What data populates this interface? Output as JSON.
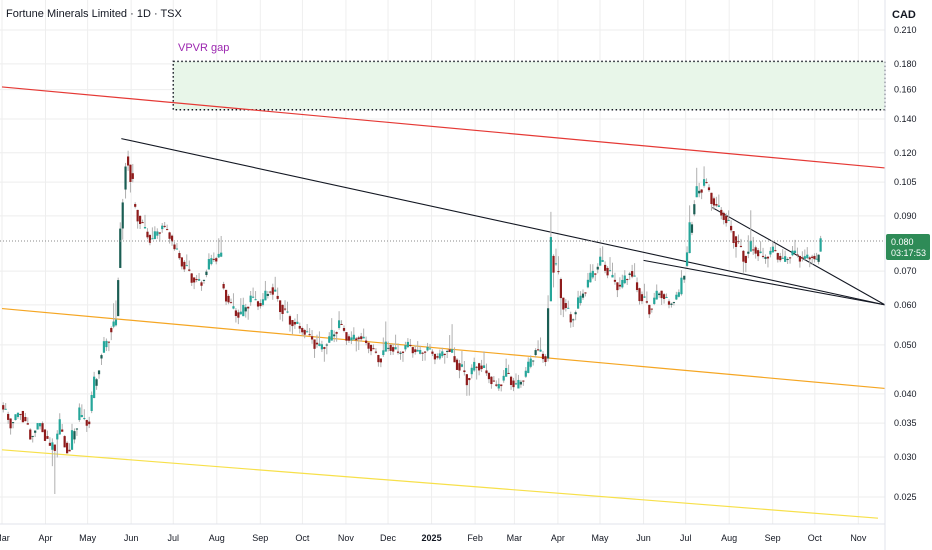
{
  "header": {
    "title": "Fortune Minerals Limited · 1D · TSX",
    "currency": "CAD"
  },
  "colors": {
    "up": "#26a69a",
    "up_dark": "#1b5e54",
    "down": "#8e1b1b",
    "wick": "#b0b0b0",
    "grid": "#eeeeee",
    "red_line": "#e53935",
    "orange_line": "#f5a623",
    "yellow_line": "#f7e04a",
    "trend_line": "#131722",
    "gap_fill": "#e8f6e9",
    "annotation": "#9c27b0",
    "price_badge": "#2e8b57"
  },
  "price_badge": {
    "price": "0.080",
    "countdown": "03:17:53"
  },
  "annotations": {
    "vpvr_gap": "VPVR gap"
  },
  "chart_data": {
    "type": "candlestick",
    "title": "Fortune Minerals Limited · 1D · TSX",
    "y_scale": "log",
    "ylim": [
      0.0225,
      0.227
    ],
    "y_ticks": [
      "0.210",
      "0.180",
      "0.160",
      "0.140",
      "0.120",
      "0.105",
      "0.090",
      "0.070",
      "0.060",
      "0.050",
      "0.040",
      "0.035",
      "0.030",
      "0.025"
    ],
    "x_ticks": [
      "Mar",
      "Apr",
      "May",
      "Jun",
      "Jul",
      "Aug",
      "Sep",
      "Oct",
      "Nov",
      "Dec",
      "2025",
      "Feb",
      "Mar",
      "Apr",
      "May",
      "Jun",
      "Jul",
      "Aug",
      "Sep",
      "Oct",
      "Nov"
    ],
    "x_range": [
      "2024-03-01",
      "2025-11-20"
    ],
    "grid": true,
    "last_price": 0.08,
    "vpvr_gap_zone": {
      "from": "2024-07-01",
      "to": "2025-11-20",
      "low": 0.146,
      "high": 0.182
    },
    "trend_lines": [
      {
        "name": "red",
        "points": [
          [
            "2024-03-01",
            0.162
          ],
          [
            "2025-11-20",
            0.112
          ]
        ]
      },
      {
        "name": "orange",
        "points": [
          [
            "2024-03-01",
            0.059
          ],
          [
            "2025-11-20",
            0.041
          ]
        ]
      },
      {
        "name": "yellow",
        "points": [
          [
            "2024-03-01",
            0.031
          ],
          [
            "2025-11-15",
            0.0227
          ]
        ]
      },
      {
        "name": "wedge-upper",
        "points": [
          [
            "2024-05-25",
            0.128
          ],
          [
            "2025-11-20",
            0.06
          ]
        ]
      },
      {
        "name": "wedge-lower",
        "points": [
          [
            "2025-06-01",
            0.0735
          ],
          [
            "2025-11-20",
            0.06
          ]
        ]
      },
      {
        "name": "wedge-flag",
        "points": [
          [
            "2025-07-20",
            0.0935
          ],
          [
            "2025-11-20",
            0.06
          ]
        ]
      }
    ],
    "series": [
      {
        "points": [
          [
            "2024-03-01",
            0.038,
            0.039,
            0.034,
            0.035
          ],
          [
            "2024-03-08",
            0.035,
            0.037,
            0.034,
            0.037
          ],
          [
            "2024-03-15",
            0.037,
            0.038,
            0.033,
            0.033
          ],
          [
            "2024-03-22",
            0.033,
            0.035,
            0.032,
            0.035
          ],
          [
            "2024-03-29",
            0.035,
            0.036,
            0.031,
            0.031
          ],
          [
            "2024-04-05",
            0.031,
            0.035,
            0.0255,
            0.034
          ],
          [
            "2024-04-12",
            0.034,
            0.035,
            0.03,
            0.03
          ],
          [
            "2024-04-19",
            0.031,
            0.038,
            0.03,
            0.037
          ],
          [
            "2024-04-26",
            0.036,
            0.038,
            0.034,
            0.035
          ],
          [
            "2024-05-03",
            0.037,
            0.047,
            0.036,
            0.046
          ],
          [
            "2024-05-10",
            0.047,
            0.053,
            0.045,
            0.052
          ],
          [
            "2024-05-17",
            0.054,
            0.061,
            0.052,
            0.055
          ],
          [
            "2024-05-22",
            0.057,
            0.09,
            0.068,
            0.085
          ],
          [
            "2024-05-25",
            0.085,
            0.128,
            0.08,
            0.118
          ],
          [
            "2024-05-29",
            0.118,
            0.125,
            0.1,
            0.105
          ],
          [
            "2024-06-03",
            0.095,
            0.096,
            0.082,
            0.085
          ],
          [
            "2024-06-10",
            0.085,
            0.09,
            0.079,
            0.08
          ],
          [
            "2024-06-17",
            0.081,
            0.088,
            0.078,
            0.086
          ],
          [
            "2024-06-24",
            0.086,
            0.088,
            0.079,
            0.081
          ],
          [
            "2024-07-01",
            0.079,
            0.081,
            0.072,
            0.073
          ],
          [
            "2024-07-08",
            0.073,
            0.077,
            0.067,
            0.068
          ],
          [
            "2024-07-15",
            0.068,
            0.07,
            0.064,
            0.066
          ],
          [
            "2024-07-22",
            0.067,
            0.076,
            0.066,
            0.074
          ],
          [
            "2024-07-29",
            0.074,
            0.082,
            0.073,
            0.075
          ],
          [
            "2024-08-05",
            0.066,
            0.067,
            0.058,
            0.059
          ],
          [
            "2024-08-12",
            0.059,
            0.063,
            0.055,
            0.057
          ],
          [
            "2024-08-19",
            0.057,
            0.064,
            0.054,
            0.062
          ],
          [
            "2024-08-26",
            0.062,
            0.065,
            0.059,
            0.06
          ],
          [
            "2024-09-02",
            0.06,
            0.068,
            0.059,
            0.065
          ],
          [
            "2024-09-09",
            0.065,
            0.069,
            0.058,
            0.06
          ],
          [
            "2024-09-16",
            0.06,
            0.063,
            0.054,
            0.056
          ],
          [
            "2024-09-23",
            0.056,
            0.058,
            0.052,
            0.054
          ],
          [
            "2024-09-30",
            0.054,
            0.056,
            0.051,
            0.052
          ],
          [
            "2024-10-07",
            0.052,
            0.055,
            0.047,
            0.049
          ],
          [
            "2024-10-14",
            0.049,
            0.052,
            0.046,
            0.051
          ],
          [
            "2024-10-21",
            0.051,
            0.058,
            0.049,
            0.055
          ],
          [
            "2024-10-28",
            0.055,
            0.056,
            0.05,
            0.051
          ],
          [
            "2024-11-04",
            0.051,
            0.054,
            0.048,
            0.052
          ],
          [
            "2024-11-11",
            0.052,
            0.054,
            0.049,
            0.05
          ],
          [
            "2024-11-18",
            0.05,
            0.051,
            0.046,
            0.047
          ],
          [
            "2024-11-25",
            0.047,
            0.055,
            0.046,
            0.05
          ],
          [
            "2024-12-02",
            0.05,
            0.053,
            0.047,
            0.048
          ],
          [
            "2024-12-09",
            0.048,
            0.051,
            0.046,
            0.05
          ],
          [
            "2024-12-16",
            0.05,
            0.052,
            0.047,
            0.048
          ],
          [
            "2024-12-23",
            0.048,
            0.05,
            0.046,
            0.049
          ],
          [
            "2024-12-30",
            0.049,
            0.05,
            0.046,
            0.047
          ],
          [
            "2025-01-06",
            0.047,
            0.05,
            0.045,
            0.049
          ],
          [
            "2025-01-13",
            0.049,
            0.055,
            0.046,
            0.046
          ],
          [
            "2025-01-20",
            0.046,
            0.049,
            0.041,
            0.043
          ],
          [
            "2025-01-27",
            0.043,
            0.047,
            0.04,
            0.046
          ],
          [
            "2025-02-03",
            0.046,
            0.049,
            0.043,
            0.044
          ],
          [
            "2025-02-10",
            0.044,
            0.045,
            0.04,
            0.041
          ],
          [
            "2025-02-17",
            0.041,
            0.046,
            0.04,
            0.044
          ],
          [
            "2025-02-24",
            0.044,
            0.046,
            0.04,
            0.041
          ],
          [
            "2025-03-03",
            0.041,
            0.045,
            0.04,
            0.044
          ],
          [
            "2025-03-10",
            0.044,
            0.05,
            0.043,
            0.049
          ],
          [
            "2025-03-17",
            0.049,
            0.052,
            0.046,
            0.047
          ],
          [
            "2025-03-24",
            0.047,
            0.085,
            0.046,
            0.075
          ],
          [
            "2025-03-28",
            0.075,
            0.081,
            0.06,
            0.065
          ],
          [
            "2025-04-04",
            0.062,
            0.064,
            0.054,
            0.056
          ],
          [
            "2025-04-11",
            0.056,
            0.064,
            0.054,
            0.062
          ],
          [
            "2025-04-18",
            0.062,
            0.071,
            0.061,
            0.068
          ],
          [
            "2025-04-25",
            0.068,
            0.076,
            0.066,
            0.073
          ],
          [
            "2025-05-02",
            0.073,
            0.078,
            0.068,
            0.069
          ],
          [
            "2025-05-09",
            0.068,
            0.072,
            0.063,
            0.065
          ],
          [
            "2025-05-16",
            0.065,
            0.072,
            0.063,
            0.07
          ],
          [
            "2025-05-23",
            0.07,
            0.074,
            0.062,
            0.063
          ],
          [
            "2025-05-30",
            0.063,
            0.067,
            0.058,
            0.059
          ],
          [
            "2025-06-06",
            0.059,
            0.066,
            0.058,
            0.064
          ],
          [
            "2025-06-13",
            0.064,
            0.065,
            0.058,
            0.06
          ],
          [
            "2025-06-20",
            0.06,
            0.064,
            0.059,
            0.063
          ],
          [
            "2025-06-27",
            0.063,
            0.08,
            0.062,
            0.076
          ],
          [
            "2025-07-03",
            0.076,
            0.106,
            0.075,
            0.098
          ],
          [
            "2025-07-08",
            0.098,
            0.114,
            0.095,
            0.105
          ],
          [
            "2025-07-15",
            0.105,
            0.107,
            0.092,
            0.095
          ],
          [
            "2025-07-22",
            0.095,
            0.1,
            0.088,
            0.09
          ],
          [
            "2025-07-29",
            0.09,
            0.094,
            0.08,
            0.082
          ],
          [
            "2025-08-05",
            0.082,
            0.085,
            0.071,
            0.075
          ],
          [
            "2025-08-12",
            0.075,
            0.09,
            0.072,
            0.078
          ],
          [
            "2025-08-19",
            0.078,
            0.082,
            0.072,
            0.074
          ],
          [
            "2025-08-26",
            0.074,
            0.079,
            0.071,
            0.077
          ],
          [
            "2025-09-02",
            0.077,
            0.08,
            0.072,
            0.073
          ],
          [
            "2025-09-09",
            0.073,
            0.078,
            0.071,
            0.076
          ],
          [
            "2025-09-16",
            0.076,
            0.08,
            0.072,
            0.074
          ],
          [
            "2025-09-23",
            0.074,
            0.078,
            0.071,
            0.075
          ],
          [
            "2025-09-30",
            0.075,
            0.077,
            0.071,
            0.073
          ],
          [
            "2025-10-03",
            0.073,
            0.081,
            0.072,
            0.08
          ]
        ]
      }
    ]
  }
}
